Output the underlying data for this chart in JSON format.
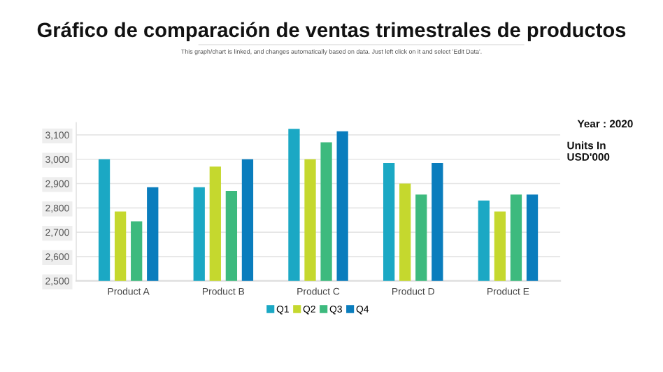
{
  "chart_data": {
    "type": "bar",
    "title": "Gráfico de comparación de ventas trimestrales de productos",
    "subtitle": "This graph/chart is linked, and changes automatically based on data. Just left click on it and select 'Edit Data'.",
    "categories": [
      "Product A",
      "Product B",
      "Product C",
      "Product D",
      "Product E"
    ],
    "series": [
      {
        "name": "Q1",
        "color": "#1ba8c4",
        "values": [
          3000,
          2885,
          3125,
          2985,
          2830
        ]
      },
      {
        "name": "Q2",
        "color": "#c5d82e",
        "values": [
          2785,
          2970,
          3000,
          2900,
          2785
        ]
      },
      {
        "name": "Q3",
        "color": "#3dba7e",
        "values": [
          2745,
          2870,
          3070,
          2855,
          2855
        ]
      },
      {
        "name": "Q4",
        "color": "#0a7dbd",
        "values": [
          2885,
          3000,
          3115,
          2985,
          2855
        ]
      }
    ],
    "ylim": [
      2500,
      3150
    ],
    "yticks": [
      {
        "value": 2500,
        "label": "2,500"
      },
      {
        "value": 2600,
        "label": "2,600"
      },
      {
        "value": 2700,
        "label": "2,700"
      },
      {
        "value": 2800,
        "label": "2,800"
      },
      {
        "value": 2900,
        "label": "2,900"
      },
      {
        "value": 3000,
        "label": "3,000"
      },
      {
        "value": 3100,
        "label": "3,100"
      }
    ],
    "grid": "y",
    "legend": "bottom",
    "annotations": [
      "Year : 2020",
      "Units In\nUSD'000"
    ]
  }
}
